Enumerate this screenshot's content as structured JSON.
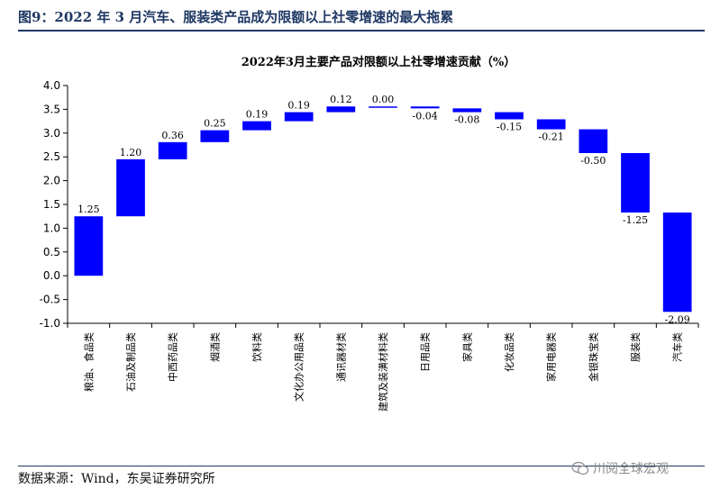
{
  "figure": {
    "title": "图9：2022 年 3 月汽车、服装类产品成为限额以上社零增速的最大拖累",
    "source": "数据来源：Wind，东吴证券研究所",
    "watermark": "川阅全球宏观"
  },
  "chart_data": {
    "type": "bar",
    "subtype": "waterfall",
    "title": "2022年3月主要产品对限额以上社零增速贡献（%）",
    "categories": [
      "粮油、食品类",
      "石油及制品类",
      "中西药品类",
      "烟酒类",
      "饮料类",
      "文化办公用品类",
      "通讯器材类",
      "建筑及装潢材料类",
      "日用品类",
      "家具类",
      "化妆品类",
      "家用电器类",
      "金银珠宝类",
      "服装类",
      "汽车类"
    ],
    "values": [
      1.25,
      1.2,
      0.36,
      0.25,
      0.19,
      0.19,
      0.12,
      0.0,
      -0.04,
      -0.08,
      -0.15,
      -0.21,
      -0.5,
      -1.25,
      -2.09
    ],
    "value_labels": [
      "1.25",
      "1.20",
      "0.36",
      "0.25",
      "0.19",
      "0.19",
      "0.12",
      "0.00",
      "-0.04",
      "-0.08",
      "-0.15",
      "-0.21",
      "-0.50",
      "-1.25",
      "-2.09"
    ],
    "ylim": [
      -1.0,
      4.0
    ],
    "yticks": [
      "4.0",
      "3.5",
      "3.0",
      "2.5",
      "2.0",
      "1.5",
      "1.0",
      "0.5",
      "0.0",
      "-0.5",
      "-1.0"
    ],
    "ytick_values": [
      4.0,
      3.5,
      3.0,
      2.5,
      2.0,
      1.5,
      1.0,
      0.5,
      0.0,
      -0.5,
      -1.0
    ],
    "bar_color": "#0000ff",
    "grid": false,
    "legend": "none"
  }
}
